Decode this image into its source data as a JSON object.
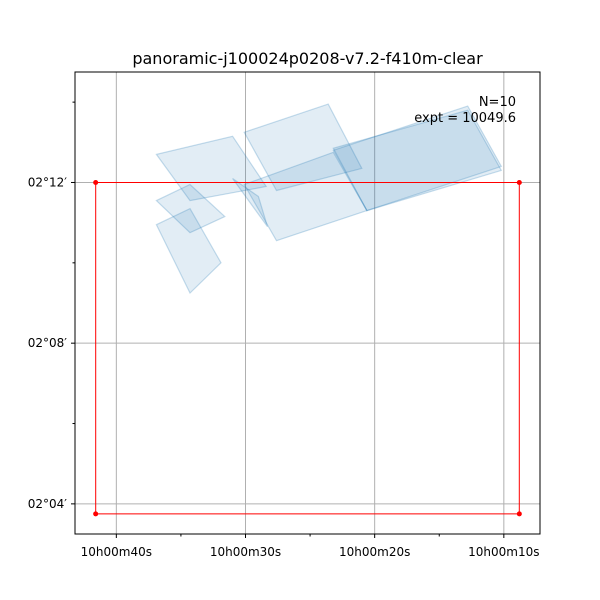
{
  "chart_data": {
    "type": "scatter",
    "title": "panoramic-j100024p0208-v7.2-f410m-clear",
    "annotation_lines": [
      "N=10",
      "expt = 10049.6"
    ],
    "x_axis": {
      "unit": "RA (seconds of 10h00m)",
      "range": [
        43.2,
        7.2
      ],
      "ticks": [
        {
          "value": 40,
          "label": "10h00m40s"
        },
        {
          "value": 30,
          "label": "10h00m30s"
        },
        {
          "value": 20,
          "label": "10h00m20s"
        },
        {
          "value": 10,
          "label": "10h00m10s"
        }
      ],
      "minor_ticks": [
        35,
        25,
        15
      ]
    },
    "y_axis": {
      "unit": "Dec (arcmin of +02°)",
      "range": [
        3.25,
        14.75
      ],
      "ticks": [
        {
          "value": 4,
          "label": "02°04′"
        },
        {
          "value": 8,
          "label": "02°08′"
        },
        {
          "value": 12,
          "label": "02°12′"
        }
      ],
      "minor_ticks": [
        6,
        10,
        14
      ]
    },
    "grid": true,
    "footprints": [
      [
        [
          36.9,
          11.55
        ],
        [
          34.3,
          10.75
        ],
        [
          31.6,
          11.15
        ],
        [
          34.3,
          11.95
        ]
      ],
      [
        [
          34.3,
          11.35
        ],
        [
          31.9,
          10.0
        ],
        [
          34.3,
          9.25
        ],
        [
          36.9,
          10.95
        ]
      ],
      [
        [
          31.0,
          12.1
        ],
        [
          28.3,
          10.9
        ],
        [
          29.0,
          11.65
        ]
      ],
      [
        [
          36.9,
          12.7
        ],
        [
          34.3,
          11.55
        ],
        [
          28.4,
          11.9
        ],
        [
          31.0,
          13.15
        ]
      ],
      [
        [
          30.1,
          13.25
        ],
        [
          27.6,
          11.8
        ],
        [
          21.0,
          12.35
        ],
        [
          23.6,
          13.95
        ]
      ],
      [
        [
          30.1,
          11.95
        ],
        [
          27.6,
          10.55
        ],
        [
          20.6,
          11.3
        ],
        [
          23.2,
          12.75
        ]
      ],
      [
        [
          23.2,
          12.85
        ],
        [
          20.6,
          11.3
        ],
        [
          10.2,
          12.3
        ],
        [
          12.8,
          13.8
        ]
      ],
      [
        [
          23.2,
          12.8
        ],
        [
          20.6,
          11.3
        ],
        [
          10.2,
          12.4
        ],
        [
          12.8,
          13.9
        ]
      ]
    ],
    "outline": [
      [
        41.6,
        12.0
      ],
      [
        8.8,
        12.0
      ],
      [
        8.8,
        3.75
      ],
      [
        41.6,
        3.75
      ]
    ]
  }
}
